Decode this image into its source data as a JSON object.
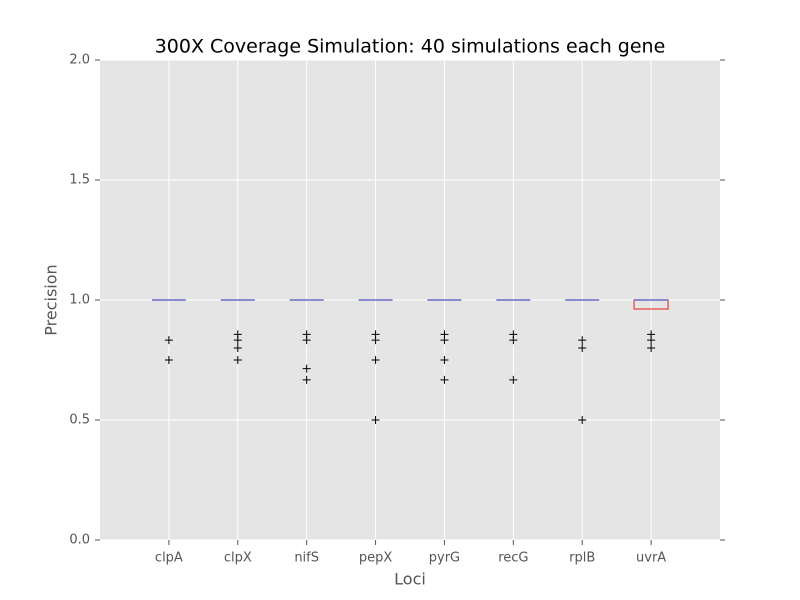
{
  "chart_data": {
    "type": "box",
    "title": "300X Coverage Simulation: 40 simulations each gene",
    "x_label": "Loci",
    "y_label": "Precision",
    "categories": [
      "clpA",
      "clpX",
      "nifS",
      "pepX",
      "pyrG",
      "recG",
      "rplB",
      "uvrA"
    ],
    "boxes": [
      {
        "min": 1.0,
        "q1": 1.0,
        "median": 1.0,
        "q3": 1.0,
        "max": 1.0,
        "outliers": [
          0.833,
          0.75
        ]
      },
      {
        "min": 1.0,
        "q1": 1.0,
        "median": 1.0,
        "q3": 1.0,
        "max": 1.0,
        "outliers": [
          0.857,
          0.833,
          0.8,
          0.75
        ]
      },
      {
        "min": 1.0,
        "q1": 1.0,
        "median": 1.0,
        "q3": 1.0,
        "max": 1.0,
        "outliers": [
          0.857,
          0.833,
          0.714,
          0.667
        ]
      },
      {
        "min": 1.0,
        "q1": 1.0,
        "median": 1.0,
        "q3": 1.0,
        "max": 1.0,
        "outliers": [
          0.857,
          0.833,
          0.75,
          0.5
        ]
      },
      {
        "min": 1.0,
        "q1": 1.0,
        "median": 1.0,
        "q3": 1.0,
        "max": 1.0,
        "outliers": [
          0.857,
          0.833,
          0.75,
          0.667
        ]
      },
      {
        "min": 1.0,
        "q1": 1.0,
        "median": 1.0,
        "q3": 1.0,
        "max": 1.0,
        "outliers": [
          0.857,
          0.833,
          0.667
        ]
      },
      {
        "min": 1.0,
        "q1": 1.0,
        "median": 1.0,
        "q3": 1.0,
        "max": 1.0,
        "outliers": [
          0.833,
          0.8,
          0.5
        ]
      },
      {
        "min": 0.9625,
        "q1": 0.9625,
        "median": 1.0,
        "q3": 1.0,
        "max": 1.0,
        "outliers": [
          0.857,
          0.833,
          0.8
        ]
      }
    ],
    "box_color": "#e8403a",
    "median_color": "#8a8ad0",
    "whisker_color": "#000000",
    "xlim": [
      0,
      9
    ],
    "ylim": [
      0,
      2
    ],
    "yticks": [
      {
        "value": 0,
        "label": "0.0"
      },
      0.5,
      {
        "value": 1,
        "label": "1.0"
      },
      1.5,
      {
        "value": 2,
        "label": "2.0"
      }
    ],
    "grid": true
  }
}
